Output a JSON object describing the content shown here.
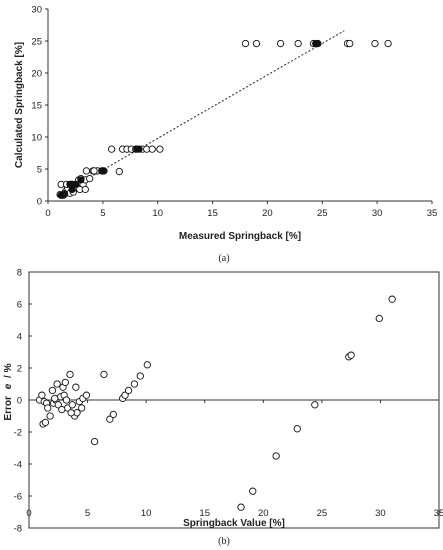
{
  "chart_data": [
    {
      "type": "scatter",
      "panel_label": "(a)",
      "xlabel": "Measured Springback [%]",
      "ylabel": "Calculated Springback [%]",
      "xlim": [
        0,
        35
      ],
      "ylim": [
        0,
        30
      ],
      "xticks": [
        "0",
        "5",
        "10",
        "15",
        "20",
        "25",
        "30",
        "35"
      ],
      "yticks": [
        "0",
        "5",
        "10",
        "15",
        "20",
        "25",
        "30"
      ],
      "grid": false,
      "series": [
        {
          "marker": "open-circle",
          "x": [
            1.1,
            1.4,
            1.6,
            1.8,
            2.0,
            2.2,
            2.4,
            2.6,
            2.8,
            3.0,
            3.2,
            3.4,
            1.2,
            1.7,
            2.1,
            2.5,
            3.0,
            3.5,
            3.8,
            4.1,
            4.5,
            5.0,
            5.8,
            6.5,
            6.8,
            7.2,
            7.6,
            8.0,
            8.6,
            9.0,
            9.5,
            10.2,
            2.9,
            3.4,
            1.5,
            2.3,
            4.2,
            18.0,
            19.0,
            21.2,
            22.8,
            24.2,
            27.3,
            27.5,
            29.8,
            31.0
          ],
          "y": [
            1.0,
            0.9,
            1.5,
            2.0,
            1.2,
            2.6,
            1.8,
            2.2,
            3.3,
            2.0,
            2.6,
            3.3,
            2.6,
            2.6,
            2.6,
            2.2,
            3.5,
            4.7,
            3.5,
            4.7,
            4.7,
            4.7,
            8.1,
            4.6,
            8.1,
            8.1,
            8.1,
            8.1,
            8.1,
            8.1,
            8.1,
            8.1,
            1.8,
            1.8,
            1.1,
            1.4,
            4.7,
            24.6,
            24.6,
            24.6,
            24.6,
            24.6,
            24.6,
            24.6,
            24.6,
            24.6
          ]
        },
        {
          "marker": "filled-circle",
          "x": [
            1.2,
            1.5,
            2.0,
            2.2,
            2.5,
            3.0,
            4.9,
            5.1,
            8.1,
            8.3,
            24.4,
            24.6
          ],
          "y": [
            0.9,
            1.1,
            2.6,
            1.8,
            2.6,
            3.3,
            4.7,
            4.7,
            8.1,
            8.1,
            24.6,
            24.6
          ]
        }
      ],
      "trendline": {
        "style": "dashed",
        "x": [
          1.0,
          27.0
        ],
        "y": [
          0.9,
          26.6
        ]
      }
    },
    {
      "type": "scatter",
      "panel_label": "(b)",
      "xlabel": "Springback Value [%]",
      "ylabel_text": "Error",
      "ylabel_symbol": "e",
      "ylabel_unit": "/ %",
      "xlim": [
        0,
        35
      ],
      "ylim": [
        -8,
        8
      ],
      "xticks": [
        "0",
        "5",
        "10",
        "15",
        "20",
        "25",
        "30",
        "35"
      ],
      "yticks": [
        "8",
        "6",
        "4",
        "2",
        "0",
        "-2",
        "-4",
        "-6",
        "-8"
      ],
      "grid": false,
      "series": [
        {
          "marker": "open-circle",
          "x": [
            0.9,
            1.1,
            1.3,
            1.5,
            1.6,
            1.8,
            2.0,
            2.1,
            2.3,
            2.4,
            2.5,
            2.7,
            2.9,
            3.0,
            3.1,
            3.3,
            3.5,
            3.7,
            3.9,
            4.1,
            4.3,
            4.6,
            4.9,
            1.2,
            1.4,
            2.2,
            2.8,
            3.2,
            3.6,
            4.0,
            4.5,
            5.6,
            6.4,
            6.9,
            7.2,
            8.0,
            8.2,
            8.5,
            9.0,
            9.5,
            10.1,
            18.1,
            19.1,
            21.1,
            22.9,
            24.4,
            27.3,
            27.5,
            29.9,
            31.0
          ],
          "y": [
            0.0,
            0.3,
            -0.1,
            -0.2,
            -0.5,
            -1.0,
            0.6,
            -0.2,
            0.0,
            1.0,
            -0.3,
            0.2,
            0.8,
            0.3,
            1.1,
            -0.5,
            1.6,
            -0.3,
            -1.0,
            -0.8,
            -0.1,
            0.1,
            0.3,
            -1.5,
            -1.4,
            0.1,
            -0.6,
            0.0,
            -0.8,
            0.8,
            -0.5,
            -2.6,
            1.6,
            -1.2,
            -0.9,
            0.1,
            0.3,
            0.6,
            1.0,
            1.5,
            2.2,
            -6.7,
            -5.7,
            -3.5,
            -1.8,
            -0.3,
            2.7,
            2.8,
            5.1,
            6.3
          ]
        }
      ]
    }
  ]
}
